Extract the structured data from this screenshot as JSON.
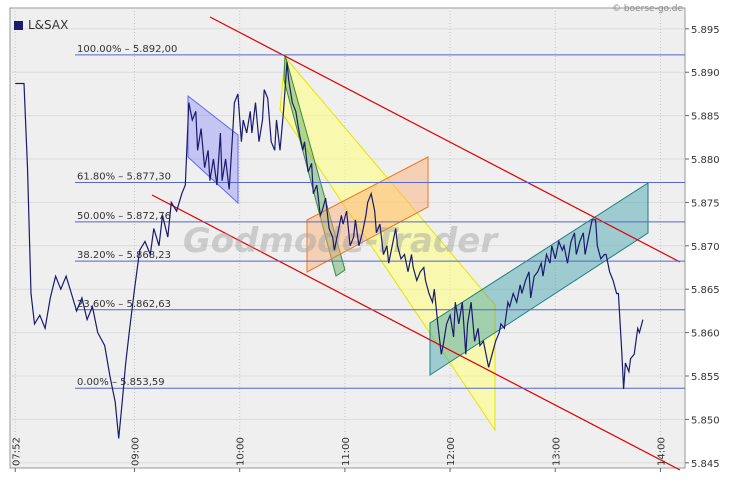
{
  "chart_data": {
    "type": "line",
    "source": "© boerse-go.de",
    "watermark": "Godmode-Trader",
    "x": [
      472,
      477,
      479,
      481,
      483,
      486,
      489,
      492,
      495,
      498,
      501,
      504,
      507,
      510,
      513,
      516,
      519,
      523,
      526,
      529,
      531,
      533,
      535,
      537,
      540,
      543,
      546,
      549,
      551,
      554,
      556,
      559,
      561,
      564,
      567,
      569,
      571,
      573,
      575,
      576,
      578,
      580,
      582,
      583,
      585,
      587,
      589,
      590,
      592,
      594,
      596,
      597,
      599,
      601,
      602,
      604,
      606,
      607,
      609,
      611,
      613,
      614,
      616,
      618,
      620,
      621,
      623,
      625,
      627,
      628,
      630,
      632,
      634,
      636,
      637,
      639,
      641,
      642,
      644,
      646,
      647,
      649,
      651,
      653,
      654,
      656,
      658,
      659,
      661,
      663,
      665,
      666,
      668,
      670,
      672,
      673,
      675,
      677,
      678,
      680,
      682,
      684,
      685,
      687,
      689,
      690,
      692,
      694,
      696,
      698,
      699,
      701,
      703,
      705,
      706,
      708,
      710,
      711,
      713,
      715,
      716,
      718,
      720,
      722,
      723,
      725,
      727,
      729,
      730,
      732,
      734,
      736,
      737,
      739,
      741,
      742,
      744,
      746,
      748,
      749,
      751,
      753,
      754,
      756,
      758,
      760,
      761,
      763,
      765,
      766,
      768,
      770,
      772,
      773,
      775,
      777,
      778,
      780,
      782,
      784,
      785,
      787,
      789,
      791,
      792,
      794,
      796,
      797,
      799,
      801,
      803,
      804,
      806,
      808,
      809,
      811,
      813,
      815,
      816,
      818,
      819,
      820,
      822,
      823,
      825,
      827,
      828,
      830
    ],
    "series": [
      {
        "name": "L&SAX",
        "color": "#1a1a6e",
        "values": [
          5.8887,
          5.8887,
          5.879,
          5.8645,
          5.861,
          5.862,
          5.8605,
          5.864,
          5.8665,
          5.865,
          5.8665,
          5.8645,
          5.8625,
          5.864,
          5.8615,
          5.863,
          5.86,
          5.8585,
          5.855,
          5.852,
          5.8478,
          5.852,
          5.8565,
          5.86,
          5.865,
          5.8695,
          5.8705,
          5.869,
          5.872,
          5.87,
          5.8735,
          5.871,
          5.875,
          5.874,
          5.876,
          5.877,
          5.8865,
          5.8845,
          5.8855,
          5.881,
          5.8835,
          5.879,
          5.881,
          5.8775,
          5.88,
          5.877,
          5.883,
          5.8775,
          5.88,
          5.8765,
          5.883,
          5.8865,
          5.8875,
          5.882,
          5.8845,
          5.883,
          5.8855,
          5.883,
          5.8865,
          5.882,
          5.8845,
          5.888,
          5.887,
          5.882,
          5.881,
          5.8845,
          5.881,
          5.8855,
          5.8912,
          5.889,
          5.8865,
          5.8855,
          5.883,
          5.881,
          5.882,
          5.8785,
          5.8795,
          5.876,
          5.877,
          5.8735,
          5.874,
          5.8755,
          5.872,
          5.871,
          5.8695,
          5.8715,
          5.8735,
          5.8725,
          5.874,
          5.87,
          5.871,
          5.873,
          5.87,
          5.8715,
          5.8735,
          5.875,
          5.876,
          5.874,
          5.8715,
          5.8725,
          5.869,
          5.87,
          5.868,
          5.87,
          5.872,
          5.87,
          5.8685,
          5.869,
          5.867,
          5.869,
          5.8675,
          5.866,
          5.867,
          5.8675,
          5.866,
          5.8645,
          5.8635,
          5.865,
          5.861,
          5.8575,
          5.8585,
          5.861,
          5.862,
          5.8595,
          5.8635,
          5.861,
          5.8635,
          5.8575,
          5.861,
          5.8635,
          5.859,
          5.8605,
          5.8585,
          5.859,
          5.857,
          5.856,
          5.8575,
          5.859,
          5.86,
          5.861,
          5.8605,
          5.8635,
          5.863,
          5.8645,
          5.8635,
          5.8655,
          5.8645,
          5.866,
          5.867,
          5.864,
          5.8665,
          5.867,
          5.868,
          5.8665,
          5.869,
          5.868,
          5.87,
          5.8685,
          5.8705,
          5.8695,
          5.87,
          5.868,
          5.8705,
          5.8715,
          5.869,
          5.8705,
          5.8715,
          5.869,
          5.871,
          5.873,
          5.873,
          5.87,
          5.8685,
          5.869,
          5.869,
          5.867,
          5.866,
          5.8645,
          5.8645,
          5.8575,
          5.8535,
          5.8565,
          5.8555,
          5.857,
          5.8575,
          5.8605,
          5.86,
          5.8615
        ]
      }
    ],
    "xlim": [
      469,
      854
    ],
    "xticks": [
      {
        "value": 472,
        "label": "07:52"
      },
      {
        "value": 540,
        "label": "09:00"
      },
      {
        "value": 600,
        "label": "10:00"
      },
      {
        "value": 660,
        "label": "11:00"
      },
      {
        "value": 720,
        "label": "12:00"
      },
      {
        "value": 780,
        "label": "13:00"
      },
      {
        "value": 840,
        "label": "14:00"
      }
    ],
    "ylim": [
      5.8444,
      5.8974
    ],
    "yticks": [
      5.895,
      {
        "value": 5.89,
        "label": "5.890"
      },
      5.885,
      {
        "value": 5.88,
        "label": "5.880"
      },
      5.875,
      {
        "value": 5.87,
        "label": "5.870"
      },
      5.865,
      {
        "value": 5.86,
        "label": "5.860"
      },
      5.855,
      {
        "value": 5.85,
        "label": "5.850"
      },
      5.845
    ],
    "levels": [
      {
        "label": "100.00% – 5.892,00",
        "value": 5.892
      },
      {
        "label": "61.80% – 5.877,30",
        "value": 5.8773
      },
      {
        "label": "50.00% – 5.872,76",
        "value": 5.87276
      },
      {
        "label": "38.20% – 5.868,23",
        "value": 5.86823
      },
      {
        "label": "23.60% – 5.862,63",
        "value": 5.86263
      },
      {
        "label": "0.00% – 5.853,59",
        "value": 5.85359
      }
    ],
    "grid": true
  }
}
